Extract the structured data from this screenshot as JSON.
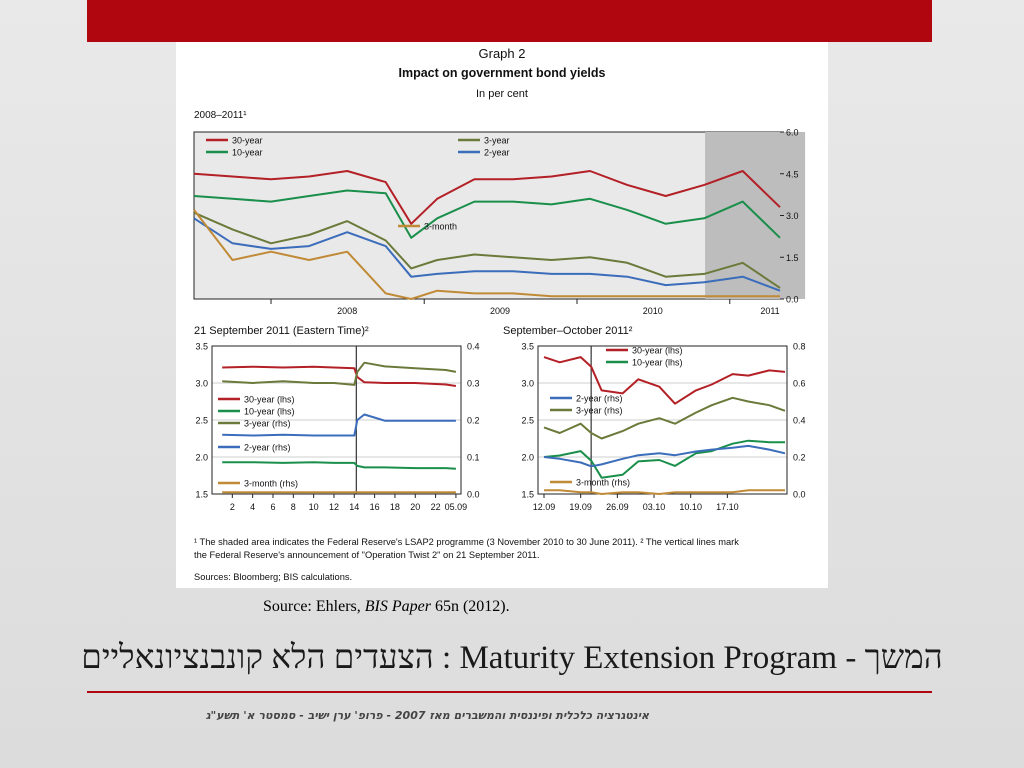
{
  "figure": {
    "graph_label": "Graph 2",
    "title": "Impact on government bond yields",
    "unit": "In per cent",
    "footnote1": "¹ The shaded area indicates the Federal Reserve's LSAP2 programme (3 November 2010 to 30 June 2011).   ² The vertical lines mark",
    "footnote2": "the Federal Reserve's announcement of \"Operation Twist 2\" on 21 September 2011.",
    "sources": "Sources: Bloomberg; BIS calculations."
  },
  "chart_data": [
    {
      "type": "line",
      "title": "2008–2011¹",
      "x_ticks": [
        "2008",
        "2009",
        "2010",
        "2011"
      ],
      "y_ticks": [
        "0.0",
        "1.5",
        "3.0",
        "4.5",
        "6.0"
      ],
      "ylim": [
        0,
        6
      ],
      "shaded_period": "3 November 2010 to 30 June 2011",
      "grid": false,
      "legend_placement": "top-left",
      "x": [
        "2007-07",
        "2007-10",
        "2008-01",
        "2008-04",
        "2008-07",
        "2008-10",
        "2008-12",
        "2009-02",
        "2009-05",
        "2009-08",
        "2009-11",
        "2010-02",
        "2010-05",
        "2010-08",
        "2010-11",
        "2011-02",
        "2011-05"
      ],
      "series": [
        {
          "name": "30-year",
          "color": "#b32026",
          "values": [
            4.5,
            4.4,
            4.3,
            4.4,
            4.6,
            4.2,
            2.7,
            3.6,
            4.3,
            4.3,
            4.4,
            4.6,
            4.1,
            3.7,
            4.1,
            4.6,
            3.3
          ]
        },
        {
          "name": "10-year",
          "color": "#1a8f4b",
          "values": [
            3.7,
            3.6,
            3.5,
            3.7,
            3.9,
            3.8,
            2.2,
            2.9,
            3.5,
            3.5,
            3.4,
            3.6,
            3.2,
            2.7,
            2.9,
            3.5,
            2.2
          ]
        },
        {
          "name": "3-year",
          "color": "#6b7a3a",
          "values": [
            3.1,
            2.5,
            2.0,
            2.3,
            2.8,
            2.1,
            1.1,
            1.4,
            1.6,
            1.5,
            1.4,
            1.5,
            1.3,
            0.8,
            0.9,
            1.3,
            0.4
          ]
        },
        {
          "name": "2-year",
          "color": "#3b6dbb",
          "values": [
            2.9,
            2.0,
            1.8,
            1.9,
            2.4,
            1.9,
            0.8,
            0.9,
            1.0,
            1.0,
            0.9,
            0.9,
            0.8,
            0.5,
            0.6,
            0.8,
            0.3
          ]
        },
        {
          "name": "3-month",
          "color": "#c08a36",
          "values": [
            3.2,
            1.4,
            1.7,
            1.4,
            1.7,
            0.2,
            0.0,
            0.3,
            0.2,
            0.2,
            0.1,
            0.1,
            0.1,
            0.1,
            0.1,
            0.1,
            0.1
          ]
        }
      ]
    },
    {
      "type": "line",
      "title": "21 September 2011 (Eastern Time)²",
      "x_ticks": [
        "2",
        "4",
        "6",
        "8",
        "10",
        "12",
        "14",
        "16",
        "18",
        "20",
        "22",
        "05.09"
      ],
      "y_ticks_left": [
        "1.5",
        "2.0",
        "2.5",
        "3.0",
        "3.5"
      ],
      "y_ticks_right": [
        "0.0",
        "0.1",
        "0.2",
        "0.3",
        "0.4"
      ],
      "ylim_left": [
        1.5,
        3.5
      ],
      "ylim_right": [
        0.0,
        0.4
      ],
      "legend_placement": "center-left",
      "x": [
        1,
        4,
        7,
        10,
        12,
        14,
        14.3,
        15,
        17,
        20,
        23,
        24
      ],
      "series": [
        {
          "name": "30-year (lhs)",
          "axis": "left",
          "color": "#b32026",
          "values": [
            3.21,
            3.22,
            3.21,
            3.22,
            3.21,
            3.2,
            3.08,
            3.01,
            3.0,
            3.0,
            2.98,
            2.96
          ]
        },
        {
          "name": "10-year (lhs)",
          "axis": "left",
          "color": "#1a8f4b",
          "values": [
            1.93,
            1.93,
            1.92,
            1.93,
            1.92,
            1.92,
            1.88,
            1.86,
            1.86,
            1.85,
            1.85,
            1.84
          ]
        },
        {
          "name": "3-year (rhs)",
          "axis": "right",
          "color": "#6b7a3a",
          "values": [
            0.305,
            0.3,
            0.305,
            0.3,
            0.3,
            0.295,
            0.33,
            0.355,
            0.345,
            0.34,
            0.335,
            0.33
          ]
        },
        {
          "name": "2-year (rhs)",
          "axis": "right",
          "color": "#3b6dbb",
          "values": [
            0.16,
            0.158,
            0.16,
            0.158,
            0.158,
            0.158,
            0.2,
            0.215,
            0.198,
            0.198,
            0.198,
            0.198
          ]
        },
        {
          "name": "3-month (rhs)",
          "axis": "right",
          "color": "#c08a36",
          "values": [
            0.005,
            0.005,
            0.005,
            0.005,
            0.005,
            0.005,
            0.005,
            0.005,
            0.005,
            0.005,
            0.005,
            0.005
          ]
        }
      ]
    },
    {
      "type": "line",
      "title": "September–October 2011²",
      "x_ticks": [
        "12.09",
        "19.09",
        "26.09",
        "03.10",
        "10.10",
        "17.10"
      ],
      "y_ticks_left": [
        "1.5",
        "2.0",
        "2.5",
        "3.0",
        "3.5"
      ],
      "y_ticks_right": [
        "0.0",
        "0.2",
        "0.4",
        "0.6",
        "0.8"
      ],
      "ylim_left": [
        1.5,
        3.5
      ],
      "ylim_right": [
        0.0,
        0.8
      ],
      "legend_placement": "top-right and center-left",
      "x": [
        "2011-09-12",
        "2011-09-15",
        "2011-09-19",
        "2011-09-21",
        "2011-09-23",
        "2011-09-27",
        "2011-09-30",
        "2011-10-04",
        "2011-10-07",
        "2011-10-11",
        "2011-10-14",
        "2011-10-18",
        "2011-10-21",
        "2011-10-25",
        "2011-10-28"
      ],
      "series": [
        {
          "name": "30-year (lhs)",
          "axis": "left",
          "color": "#b32026",
          "values": [
            3.35,
            3.28,
            3.35,
            3.22,
            2.9,
            2.86,
            3.05,
            2.95,
            2.72,
            2.9,
            2.98,
            3.12,
            3.1,
            3.17,
            3.15
          ]
        },
        {
          "name": "10-year (lhs)",
          "axis": "left",
          "color": "#1a8f4b",
          "values": [
            2.0,
            2.02,
            2.08,
            1.95,
            1.72,
            1.76,
            1.94,
            1.96,
            1.88,
            2.05,
            2.08,
            2.18,
            2.22,
            2.2,
            2.2
          ]
        },
        {
          "name": "2-year (rhs)",
          "axis": "right",
          "color": "#3b6dbb",
          "values": [
            0.2,
            0.19,
            0.17,
            0.15,
            0.16,
            0.19,
            0.21,
            0.22,
            0.21,
            0.23,
            0.24,
            0.25,
            0.26,
            0.24,
            0.22
          ]
        },
        {
          "name": "3-year (rhs)",
          "axis": "right",
          "color": "#6b7a3a",
          "values": [
            0.36,
            0.33,
            0.38,
            0.33,
            0.3,
            0.34,
            0.38,
            0.41,
            0.38,
            0.44,
            0.48,
            0.52,
            0.5,
            0.48,
            0.45
          ]
        },
        {
          "name": "3-month (rhs)",
          "axis": "right",
          "color": "#c08a36",
          "values": [
            0.02,
            0.02,
            0.01,
            0.01,
            0.0,
            0.01,
            0.01,
            0.0,
            0.01,
            0.01,
            0.01,
            0.01,
            0.02,
            0.02,
            0.02
          ]
        }
      ]
    }
  ],
  "slide": {
    "source_prefix": "Source: Ehlers, ",
    "source_italic": "BIS Paper",
    "source_suffix": " 65n (2012).",
    "title": "הצעדים הלא קונבנציונאליים : Maturity Extension Program - המשך",
    "footer": "אינטגרציה כלכלית ופיננסית והמשברים מאז 2007 - פרופ' ערן ישיב - סמסטר א' תשע\"ג",
    "accent_color": "#b0060f"
  }
}
